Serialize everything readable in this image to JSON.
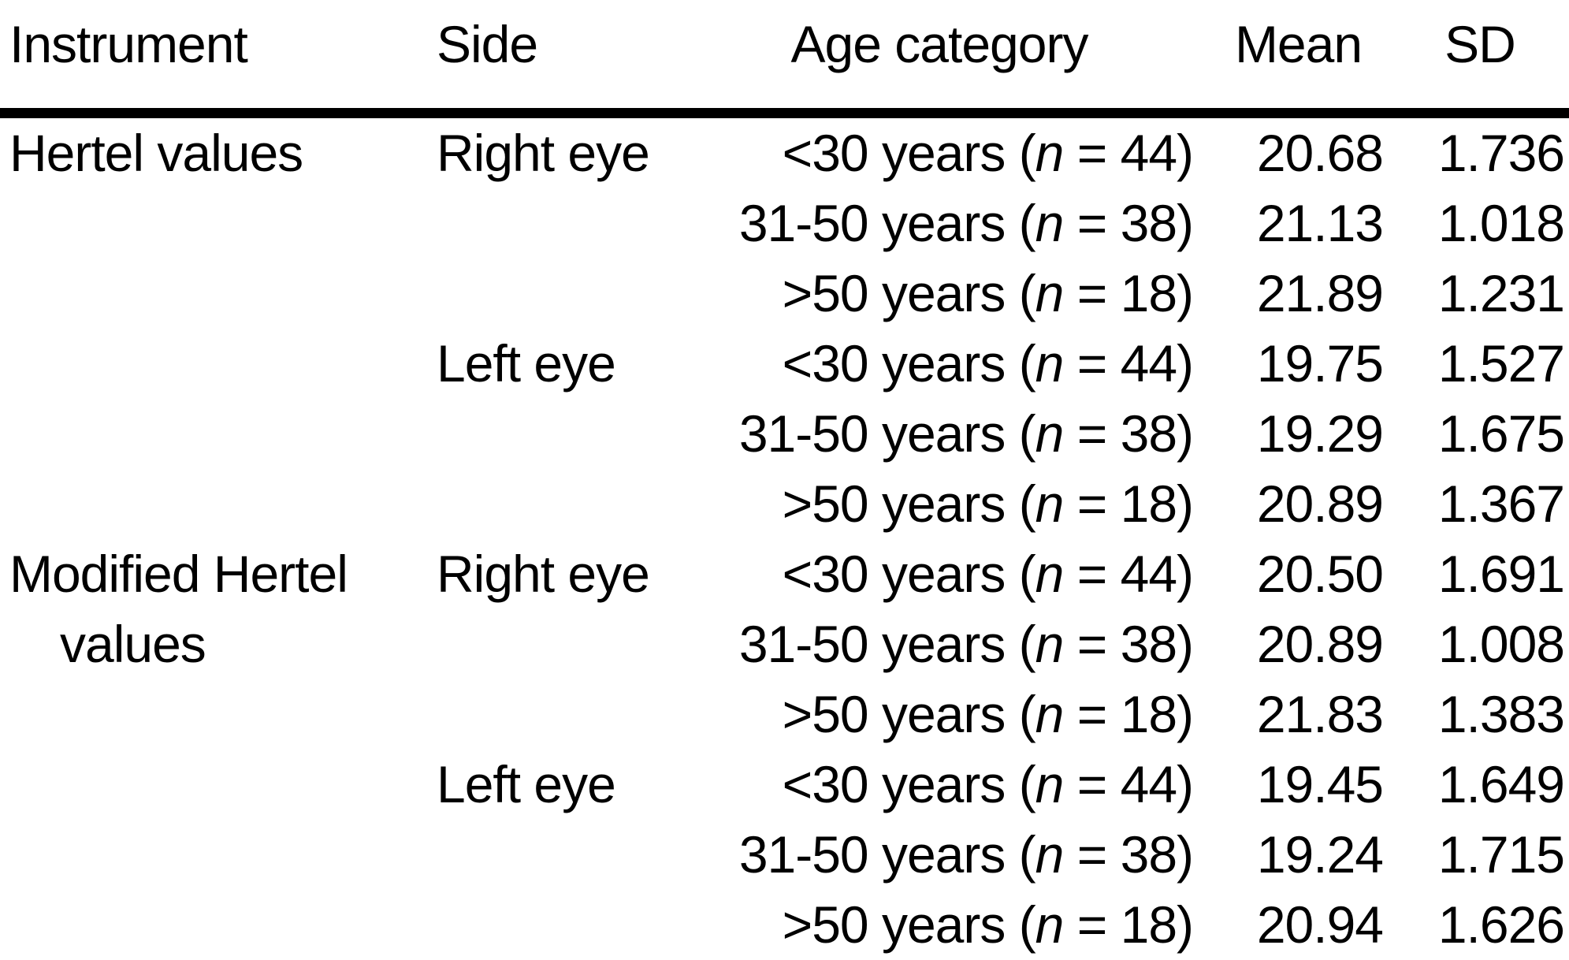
{
  "table": {
    "background_color": "#ffffff",
    "text_color": "#000000",
    "columns": [
      "Instrument",
      "Side",
      "Age category",
      "Mean",
      "SD"
    ],
    "groups": [
      {
        "instrument": "Hertel values",
        "sides": [
          {
            "side": "Right eye",
            "rows": [
              {
                "age_pre": "<30 years (",
                "n_var": "n",
                "age_post": " = 44)",
                "mean": "20.68",
                "sd": "1.736"
              },
              {
                "age_pre": "31-50 years (",
                "n_var": "n",
                "age_post": " = 38)",
                "mean": "21.13",
                "sd": "1.018"
              },
              {
                "age_pre": ">50 years (",
                "n_var": "n",
                "age_post": " = 18)",
                "mean": "21.89",
                "sd": "1.231"
              }
            ]
          },
          {
            "side": "Left eye",
            "rows": [
              {
                "age_pre": "<30 years (",
                "n_var": "n",
                "age_post": " = 44)",
                "mean": "19.75",
                "sd": "1.527"
              },
              {
                "age_pre": "31-50 years (",
                "n_var": "n",
                "age_post": " = 38)",
                "mean": "19.29",
                "sd": "1.675"
              },
              {
                "age_pre": ">50 years (",
                "n_var": "n",
                "age_post": " = 18)",
                "mean": "20.89",
                "sd": "1.367"
              }
            ]
          }
        ]
      },
      {
        "instrument": "Modified Hertel values",
        "sides": [
          {
            "side": "Right eye",
            "rows": [
              {
                "age_pre": "<30 years (",
                "n_var": "n",
                "age_post": " = 44)",
                "mean": "20.50",
                "sd": "1.691"
              },
              {
                "age_pre": "31-50 years (",
                "n_var": "n",
                "age_post": " = 38)",
                "mean": "20.89",
                "sd": "1.008"
              },
              {
                "age_pre": ">50 years (",
                "n_var": "n",
                "age_post": " = 18)",
                "mean": "21.83",
                "sd": "1.383"
              }
            ]
          },
          {
            "side": "Left eye",
            "rows": [
              {
                "age_pre": "<30 years (",
                "n_var": "n",
                "age_post": " = 44)",
                "mean": "19.45",
                "sd": "1.649"
              },
              {
                "age_pre": "31-50 years (",
                "n_var": "n",
                "age_post": " = 38)",
                "mean": "19.24",
                "sd": "1.715"
              },
              {
                "age_pre": ">50 years (",
                "n_var": "n",
                "age_post": " = 18)",
                "mean": "20.94",
                "sd": "1.626"
              }
            ]
          }
        ]
      }
    ]
  }
}
